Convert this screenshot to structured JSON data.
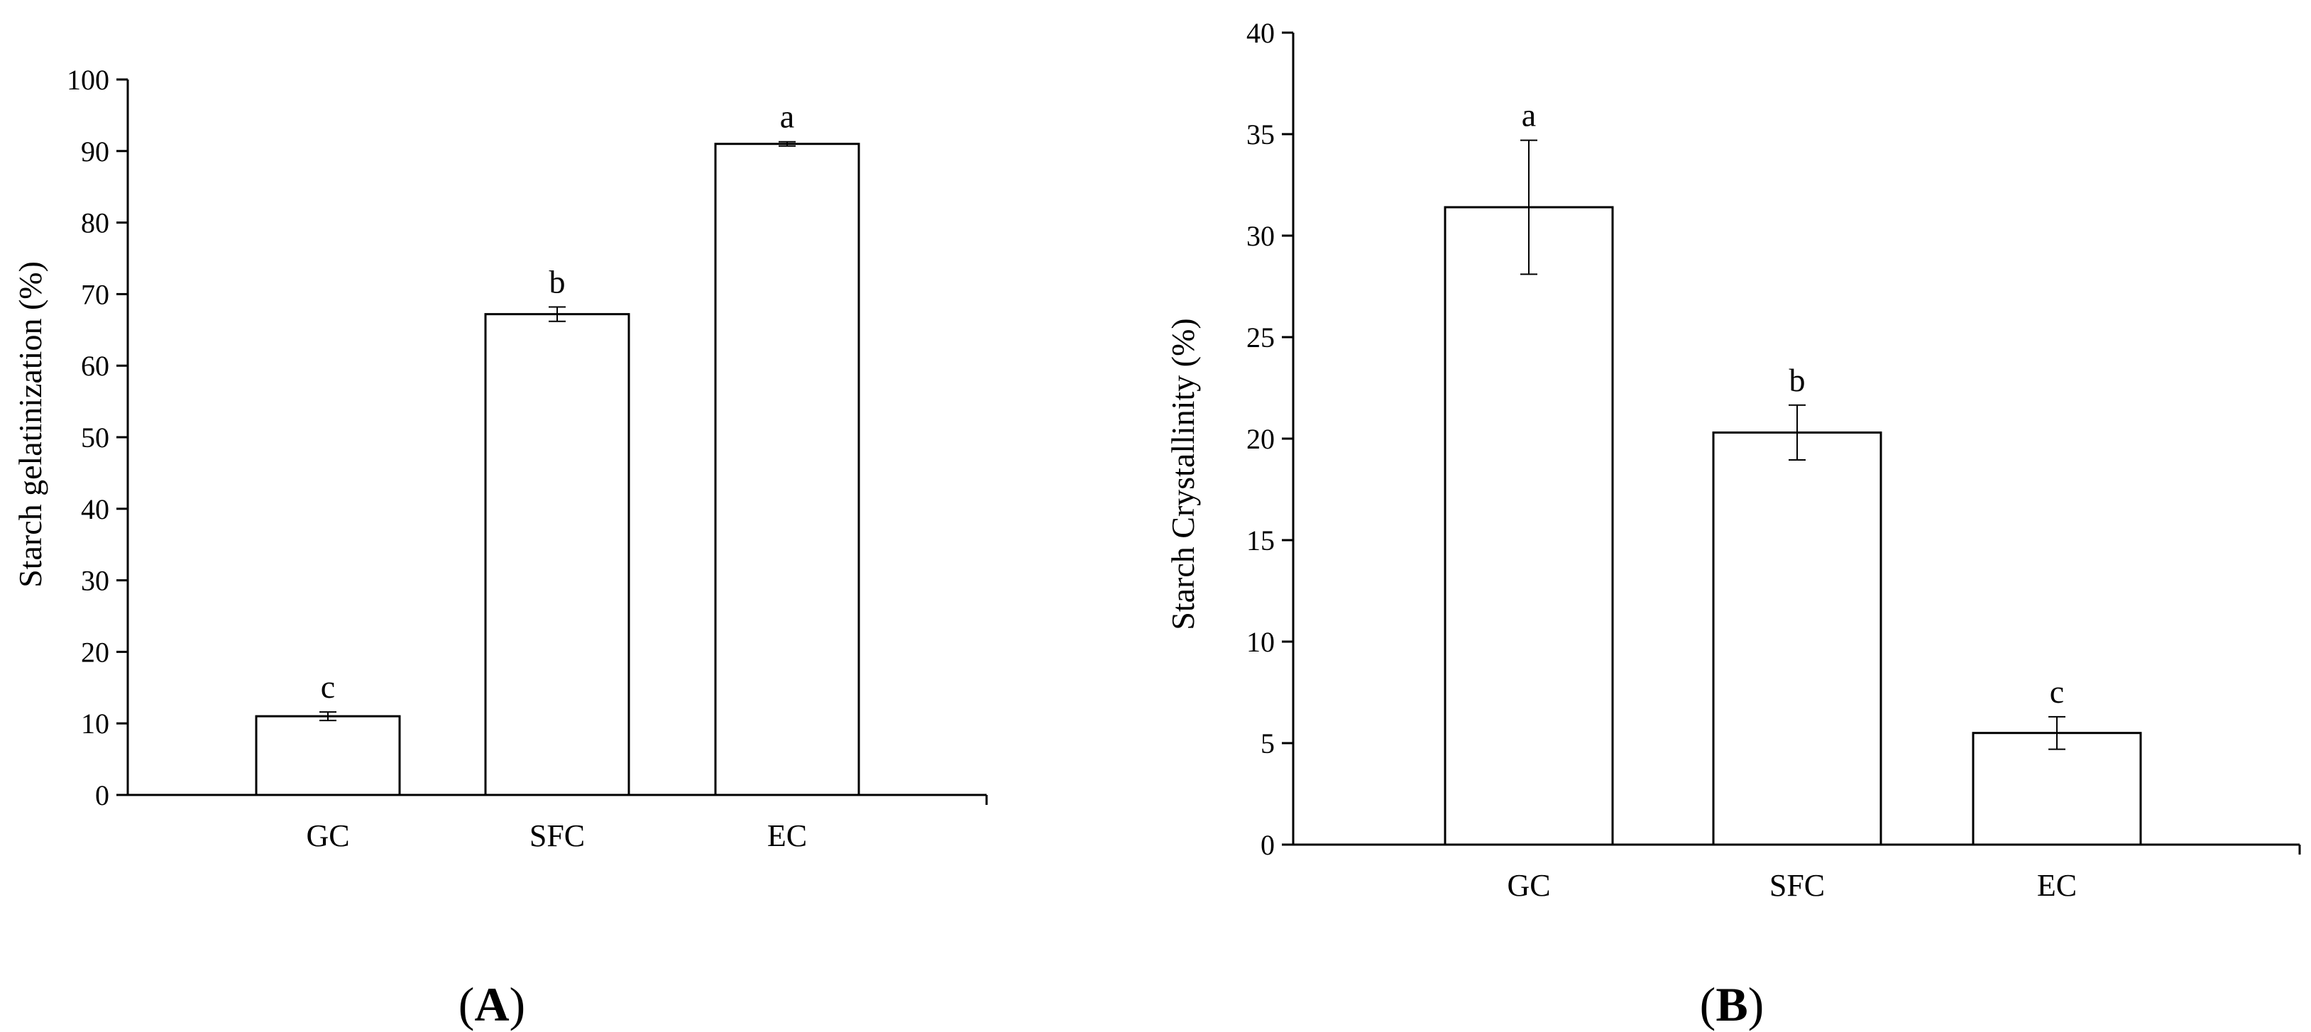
{
  "chart_data": [
    {
      "type": "bar",
      "panel_label": "(A)",
      "panel_letter": "A",
      "categories": [
        "GC",
        "SFC",
        "EC"
      ],
      "values": [
        11,
        67.2,
        91
      ],
      "errors": [
        0.6,
        1.0,
        0.3
      ],
      "significance": [
        "c",
        "b",
        "a"
      ],
      "title": "",
      "xlabel": "",
      "ylabel": "Starch gelatinization (%)",
      "ylim": [
        0,
        100
      ],
      "yticks": [
        0,
        10,
        20,
        30,
        40,
        50,
        60,
        70,
        80,
        90,
        100
      ],
      "grid": false,
      "bar_fill": "#ffffff",
      "bar_stroke": "#000000"
    },
    {
      "type": "bar",
      "panel_label": "(B)",
      "panel_letter": "B",
      "categories": [
        "GC",
        "SFC",
        "EC"
      ],
      "values": [
        31.4,
        20.3,
        5.5
      ],
      "errors": [
        3.3,
        1.35,
        0.8
      ],
      "significance": [
        "a",
        "b",
        "c"
      ],
      "title": "",
      "xlabel": "",
      "ylabel": "Starch  Crystallinity (%)",
      "ylim": [
        0,
        40
      ],
      "yticks": [
        0,
        5,
        10,
        15,
        20,
        25,
        30,
        35,
        40
      ],
      "grid": false,
      "bar_fill": "#ffffff",
      "bar_stroke": "#000000"
    }
  ]
}
